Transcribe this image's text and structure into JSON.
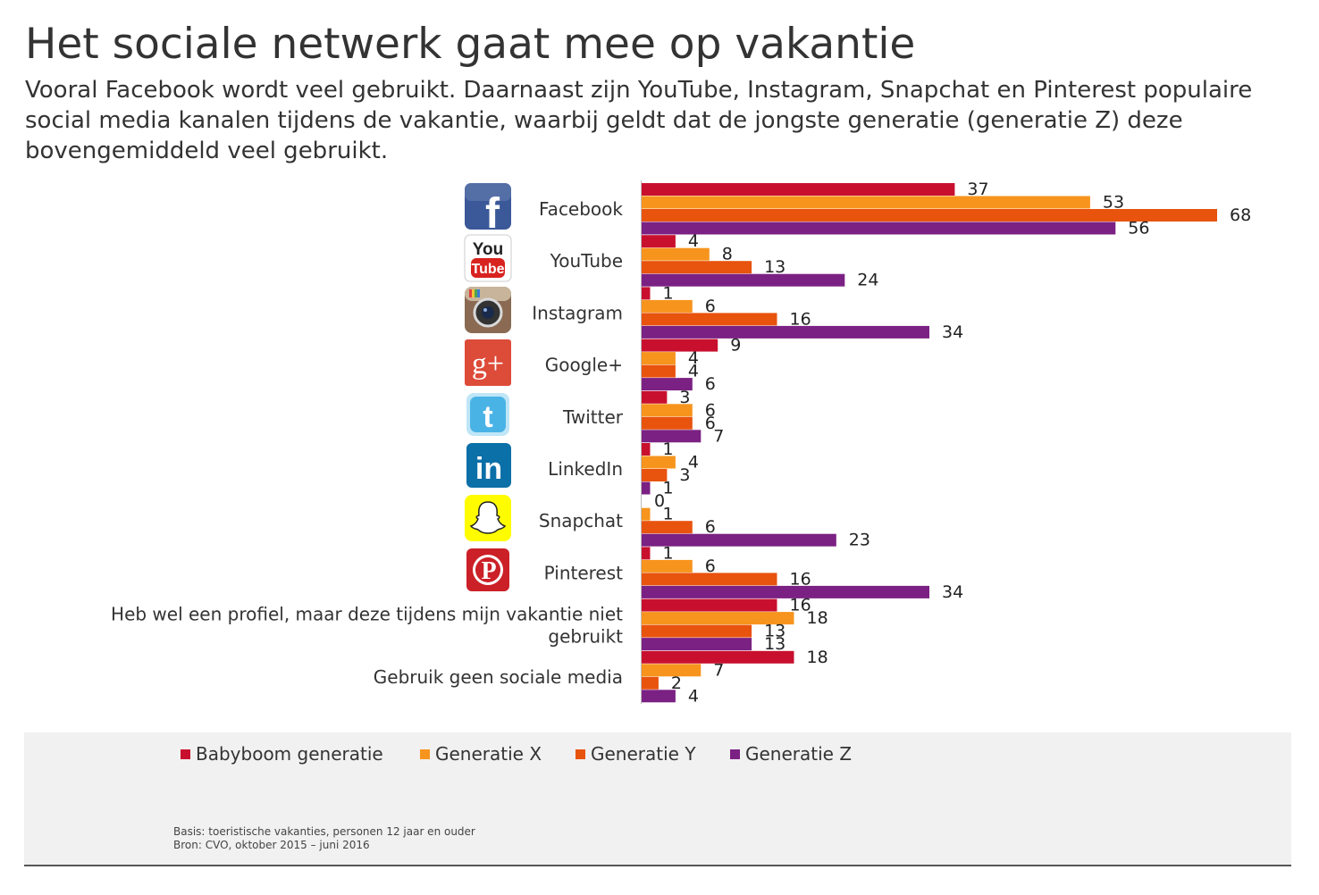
{
  "title": "Het sociale netwerk gaat mee op vakantie",
  "subtitle": "Vooral Facebook wordt veel gebruikt. Daarnaast zijn YouTube, Instagram, Snapchat en Pinterest populaire social media kanalen tijdens de vakantie, waarbij geldt dat de jongste generatie (generatie Z) deze bovengemiddeld veel gebruikt.",
  "icons": {
    "Facebook": {
      "name": "facebook-icon",
      "glyph": "f",
      "color": "#3b5998"
    },
    "YouTube": {
      "name": "youtube-icon",
      "line1": "You",
      "line2": "Tube",
      "color": "#d8231f"
    },
    "Instagram": {
      "name": "instagram-icon",
      "color": "#8a6a52"
    },
    "Google+": {
      "name": "google-plus-icon",
      "glyph": "g+",
      "color": "#dd4b39"
    },
    "Twitter": {
      "name": "twitter-icon",
      "glyph": "t",
      "color": "#4ab3e6"
    },
    "LinkedIn": {
      "name": "linkedin-icon",
      "glyph": "in",
      "color": "#0b6fa8"
    },
    "Snapchat": {
      "name": "snapchat-icon",
      "color": "#fffc00"
    },
    "Pinterest": {
      "name": "pinterest-icon",
      "glyph": "P",
      "color": "#cb2027"
    }
  },
  "legend": [
    {
      "label": "Babyboom generatie",
      "color": "#c8102e"
    },
    {
      "label": "Generatie X",
      "color": "#f7941d"
    },
    {
      "label": "Generatie Y",
      "color": "#e8530e"
    },
    {
      "label": "Generatie Z",
      "color": "#7b2183"
    }
  ],
  "footnotes": {
    "basis": "Basis: toeristische vakanties, personen 12 jaar en ouder",
    "bron": "Bron: CVO, oktober 2015 – juni 2016"
  },
  "chart_data": {
    "type": "bar",
    "orientation": "horizontal",
    "categories": [
      "Facebook",
      "YouTube",
      "Instagram",
      "Google+",
      "Twitter",
      "LinkedIn",
      "Snapchat",
      "Pinterest",
      "Heb wel een profiel, maar deze tijdens mijn vakantie niet gebruikt",
      "Gebruik geen sociale media"
    ],
    "category_lines": [
      [
        "Facebook"
      ],
      [
        "YouTube"
      ],
      [
        "Instagram"
      ],
      [
        "Google+"
      ],
      [
        "Twitter"
      ],
      [
        "LinkedIn"
      ],
      [
        "Snapchat"
      ],
      [
        "Pinterest"
      ],
      [
        "Heb wel een profiel, maar deze tijdens mijn vakantie niet",
        "gebruikt"
      ],
      [
        "Gebruik geen sociale media"
      ]
    ],
    "series": [
      {
        "name": "Babyboom generatie",
        "color": "#c8102e",
        "values": [
          37,
          4,
          1,
          9,
          3,
          1,
          0,
          1,
          16,
          18
        ]
      },
      {
        "name": "Generatie X",
        "color": "#f7941d",
        "values": [
          53,
          8,
          6,
          4,
          6,
          4,
          1,
          6,
          18,
          7
        ]
      },
      {
        "name": "Generatie Y",
        "color": "#e8530e",
        "values": [
          68,
          13,
          16,
          4,
          6,
          3,
          6,
          16,
          13,
          2
        ]
      },
      {
        "name": "Generatie Z",
        "color": "#7b2183",
        "values": [
          56,
          24,
          34,
          6,
          7,
          1,
          23,
          34,
          13,
          4
        ]
      }
    ],
    "xlim": [
      0,
      70
    ],
    "grid": false,
    "legend_position": "bottom"
  }
}
